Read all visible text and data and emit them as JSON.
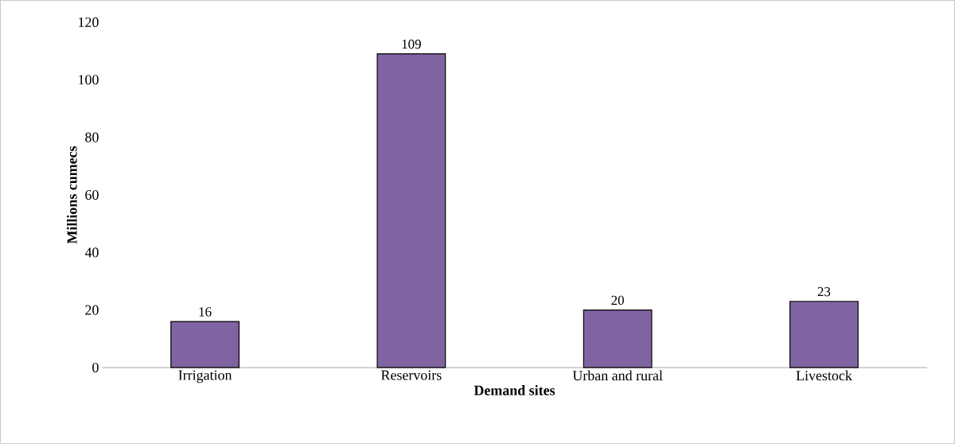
{
  "chart_data": {
    "type": "bar",
    "xlabel": "Demand sites",
    "ylabel": "Millions  cumecs",
    "categories": [
      "Irrigation",
      "Reservoirs",
      "Urban and rural",
      "Livestock"
    ],
    "values": [
      16,
      109,
      20,
      23
    ],
    "color": "#8064a2",
    "ylim": [
      0,
      120
    ],
    "yticks": [
      0,
      20,
      40,
      60,
      80,
      100,
      120
    ],
    "data_labels": true
  }
}
